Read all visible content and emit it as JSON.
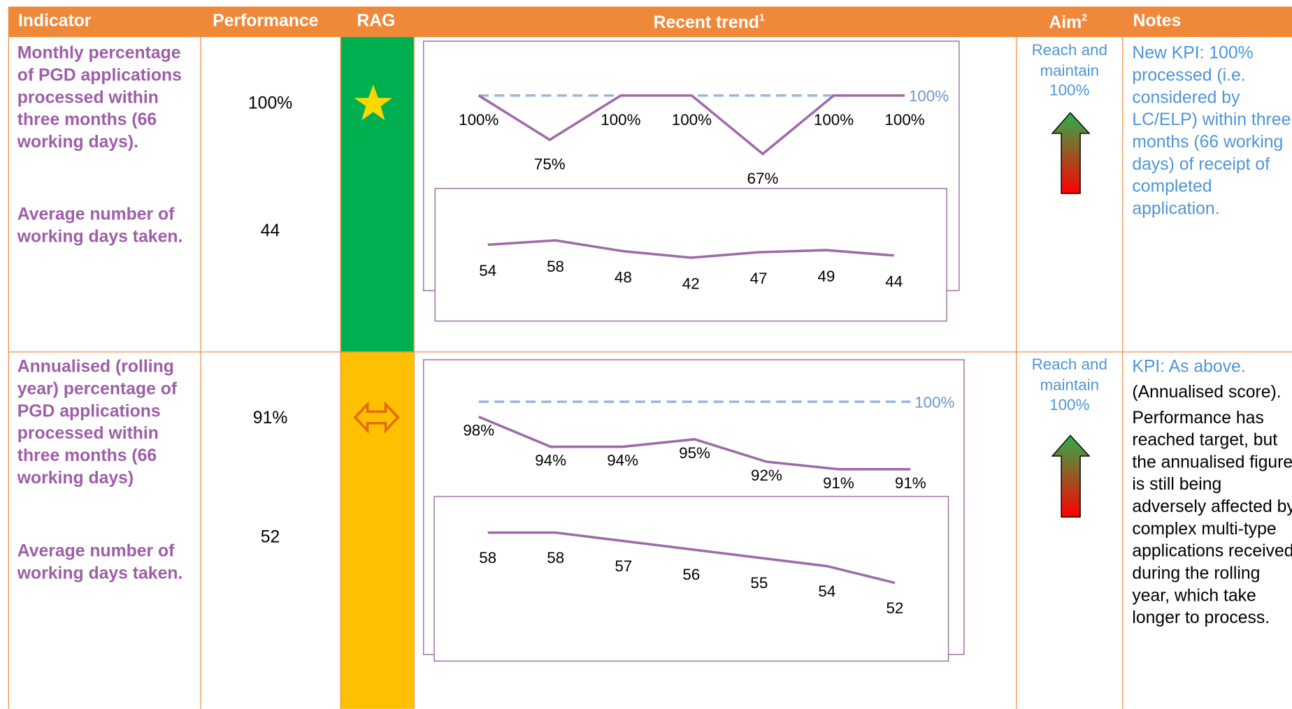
{
  "header": {
    "columns": [
      {
        "label": "Indicator"
      },
      {
        "label": "Performance"
      },
      {
        "label": "RAG"
      },
      {
        "label": "Recent trend",
        "sup": "1"
      },
      {
        "label": "Aim",
        "sup": "2"
      },
      {
        "label": "Notes"
      }
    ]
  },
  "rows": [
    {
      "indicator": [
        "Monthly percentage of PGD applications processed within three months (66 working days).",
        "Average number of working days taken."
      ],
      "performance": [
        "100%",
        "44"
      ],
      "rag_color": "#00b050",
      "trend": [
        {
          "type": "line",
          "color": "#9e6aa8",
          "values": [
            100,
            75,
            100,
            100,
            67,
            100,
            100
          ],
          "value_labels": [
            "100%",
            "75%",
            "100%",
            "100%",
            "67%",
            "100%",
            "100%"
          ],
          "target": 100,
          "target_label": "100%",
          "target_color": "#9bb6dc"
        },
        {
          "type": "line",
          "color": "#9e6aa8",
          "values": [
            54,
            58,
            48,
            42,
            47,
            49,
            44
          ]
        }
      ],
      "aim": "Reach and maintain 100%",
      "notes": [
        {
          "text": "New KPI: 100% processed (i.e. considered by LC/ELP) within three months (66 working days) of receipt of completed application.",
          "color": "#4f95d8"
        }
      ]
    },
    {
      "indicator": [
        "Annualised (rolling year) percentage of PGD applications processed within three months (66 working days)",
        "Average number of working days taken."
      ],
      "performance": [
        "91%",
        "52"
      ],
      "rag_color": "#ffc000",
      "trend": [
        {
          "type": "line",
          "color": "#9e6aa8",
          "values": [
            98,
            94,
            94,
            95,
            92,
            91,
            91
          ],
          "value_labels": [
            "98%",
            "94%",
            "94%",
            "95%",
            "92%",
            "91%",
            "91%"
          ],
          "target": 100,
          "target_label": "100%",
          "target_color": "#9bb6dc"
        },
        {
          "type": "line",
          "color": "#9e6aa8",
          "values": [
            58,
            58,
            57,
            56,
            55,
            54,
            52
          ]
        }
      ],
      "aim": "Reach and maintain 100%",
      "notes": [
        {
          "text": "KPI: As above.",
          "color": "#4f95d8"
        },
        {
          "text": "(Annualised score).",
          "color": "#000000"
        },
        {
          "text": "Performance has reached target, but the annualised figure is still being adversely affected by complex multi-type applications received during the rolling year, which take longer to process.",
          "color": "#000000"
        }
      ]
    }
  ]
}
